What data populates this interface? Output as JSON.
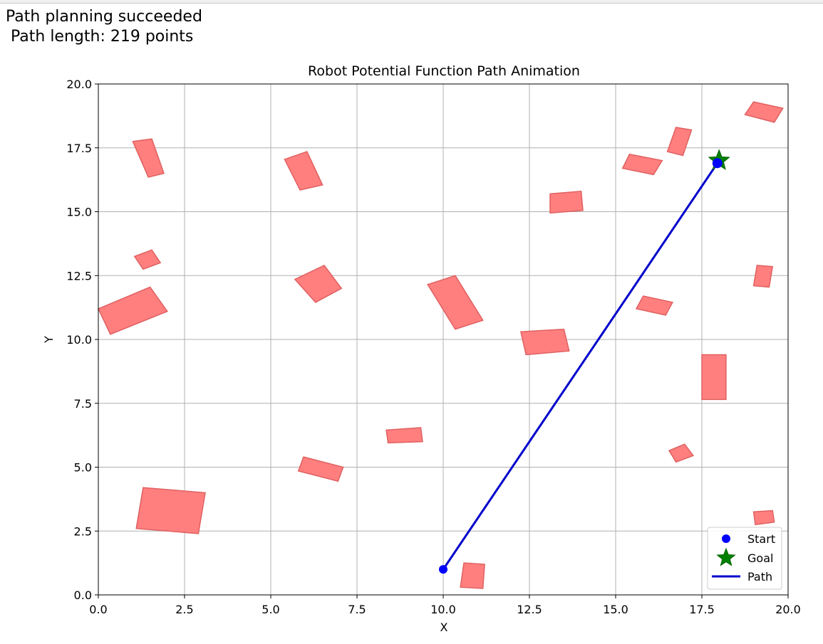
{
  "status": {
    "line1": "Path planning succeeded",
    "line2": " Path length: 219 points"
  },
  "chart_data": {
    "type": "scatter",
    "title": "Robot Potential Function Path Animation",
    "xlabel": "X",
    "ylabel": "Y",
    "xlim": [
      0,
      20
    ],
    "ylim": [
      0,
      20
    ],
    "xticks": [
      "0.0",
      "2.5",
      "5.0",
      "7.5",
      "10.0",
      "12.5",
      "15.0",
      "17.5",
      "20.0"
    ],
    "yticks": [
      "0.0",
      "2.5",
      "5.0",
      "7.5",
      "10.0",
      "12.5",
      "15.0",
      "17.5",
      "20.0"
    ],
    "grid": true,
    "legend_position": "lower-right",
    "legend": [
      {
        "label": "Start",
        "marker": "circle",
        "color": "#0000ff"
      },
      {
        "label": "Goal",
        "marker": "star",
        "color": "#008000"
      },
      {
        "label": "Path",
        "marker": "line",
        "color": "#0000cc"
      }
    ],
    "start": {
      "x": 10.0,
      "y": 1.0
    },
    "goal": {
      "x": 18.0,
      "y": 17.0
    },
    "current": {
      "x": 17.95,
      "y": 16.9
    },
    "path": {
      "from": {
        "x": 10.0,
        "y": 1.0
      },
      "to": {
        "x": 17.95,
        "y": 16.9
      }
    },
    "obstacle_color": "#ff7f7f",
    "obstacle_edge_color": "#e06060",
    "path_color": "#0000cc",
    "obstacles": [
      [
        [
          1.0,
          17.75
        ],
        [
          1.55,
          17.85
        ],
        [
          1.9,
          16.5
        ],
        [
          1.45,
          16.35
        ]
      ],
      [
        [
          5.4,
          17.05
        ],
        [
          6.05,
          17.35
        ],
        [
          6.5,
          16.05
        ],
        [
          5.85,
          15.85
        ]
      ],
      [
        [
          1.05,
          13.25
        ],
        [
          1.55,
          13.5
        ],
        [
          1.8,
          13.0
        ],
        [
          1.3,
          12.75
        ]
      ],
      [
        [
          0.0,
          11.2
        ],
        [
          1.5,
          12.05
        ],
        [
          2.0,
          11.1
        ],
        [
          0.35,
          10.2
        ]
      ],
      [
        [
          5.7,
          12.35
        ],
        [
          6.55,
          12.9
        ],
        [
          7.05,
          12.0
        ],
        [
          6.3,
          11.45
        ]
      ],
      [
        [
          9.55,
          12.15
        ],
        [
          10.35,
          12.5
        ],
        [
          11.15,
          10.75
        ],
        [
          10.35,
          10.4
        ]
      ],
      [
        [
          13.1,
          15.7
        ],
        [
          14.0,
          15.8
        ],
        [
          14.05,
          15.05
        ],
        [
          13.1,
          14.95
        ]
      ],
      [
        [
          15.4,
          17.25
        ],
        [
          16.35,
          17.0
        ],
        [
          16.1,
          16.45
        ],
        [
          15.2,
          16.7
        ]
      ],
      [
        [
          16.75,
          18.3
        ],
        [
          17.2,
          18.2
        ],
        [
          16.95,
          17.2
        ],
        [
          16.5,
          17.35
        ]
      ],
      [
        [
          19.0,
          19.3
        ],
        [
          19.85,
          19.05
        ],
        [
          19.6,
          18.5
        ],
        [
          18.75,
          18.8
        ]
      ],
      [
        [
          15.8,
          11.7
        ],
        [
          16.65,
          11.45
        ],
        [
          16.45,
          10.95
        ],
        [
          15.6,
          11.2
        ]
      ],
      [
        [
          19.1,
          12.9
        ],
        [
          19.55,
          12.85
        ],
        [
          19.45,
          12.05
        ],
        [
          19.0,
          12.1
        ]
      ],
      [
        [
          12.25,
          10.3
        ],
        [
          13.5,
          10.4
        ],
        [
          13.65,
          9.55
        ],
        [
          12.4,
          9.4
        ]
      ],
      [
        [
          17.5,
          9.4
        ],
        [
          18.2,
          9.4
        ],
        [
          18.2,
          7.65
        ],
        [
          17.5,
          7.65
        ]
      ],
      [
        [
          8.35,
          6.45
        ],
        [
          9.35,
          6.55
        ],
        [
          9.4,
          6.0
        ],
        [
          8.4,
          5.95
        ]
      ],
      [
        [
          5.95,
          5.4
        ],
        [
          7.1,
          5.0
        ],
        [
          6.95,
          4.45
        ],
        [
          5.8,
          4.85
        ]
      ],
      [
        [
          16.55,
          5.65
        ],
        [
          17.0,
          5.9
        ],
        [
          17.25,
          5.45
        ],
        [
          16.75,
          5.2
        ]
      ],
      [
        [
          1.3,
          4.2
        ],
        [
          3.1,
          4.0
        ],
        [
          2.9,
          2.4
        ],
        [
          1.1,
          2.6
        ]
      ],
      [
        [
          19.0,
          3.25
        ],
        [
          19.55,
          3.3
        ],
        [
          19.6,
          2.85
        ],
        [
          19.05,
          2.75
        ]
      ],
      [
        [
          10.6,
          1.25
        ],
        [
          11.2,
          1.2
        ],
        [
          11.15,
          0.25
        ],
        [
          10.5,
          0.3
        ]
      ]
    ]
  }
}
